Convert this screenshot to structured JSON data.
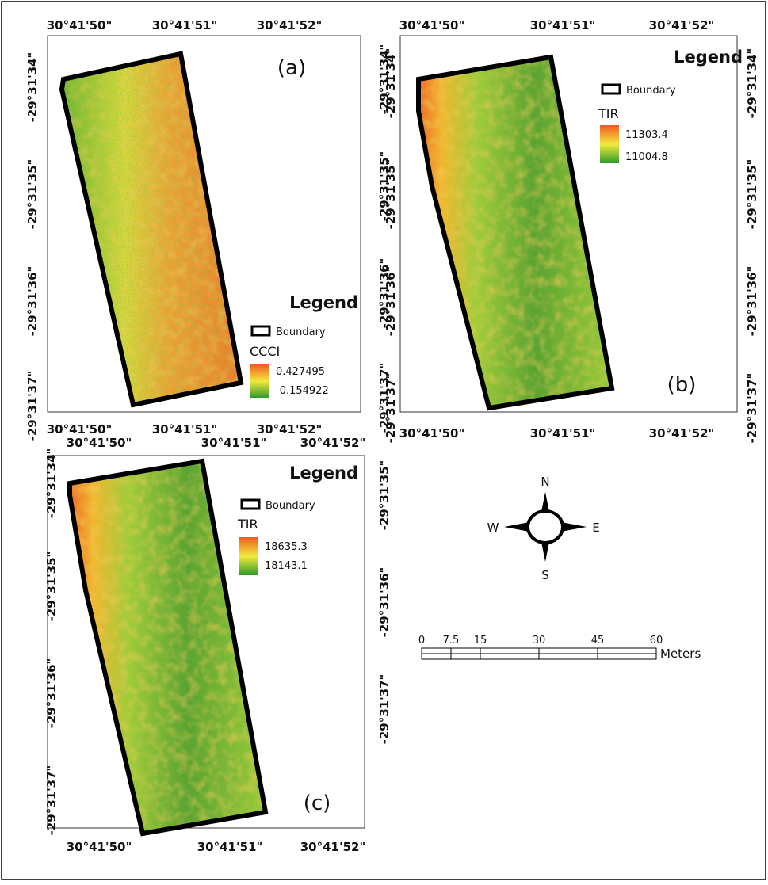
{
  "panels": [
    {
      "label": "(a)",
      "top_labels": [
        "30°41'50\"",
        "30°41'51\"",
        "30°41'52\""
      ],
      "bottom_labels": [
        "30°41'50\"",
        "30°41'51\"",
        "30°41'52\""
      ],
      "left_labels": [
        "-29°31'34\"",
        "-29°31'35\"",
        "-29°31'36\"",
        "-29°31'37\""
      ],
      "right_labels": [
        "-29°31'34\"",
        "-29°31'35\"",
        "-29°31'36\"",
        "-29°31'37\""
      ],
      "legend": {
        "title": "Legend",
        "boundary": "Boundary",
        "variable": "CCCI",
        "high": "0.427495",
        "low": "-0.154922"
      }
    },
    {
      "label": "(b)",
      "top_labels": [
        "30°41'50\"",
        "30°41'51\"",
        "30°41'52\""
      ],
      "bottom_labels": [
        "30°41'50\"",
        "30°41'51\"",
        "30°41'52\""
      ],
      "left_labels": [
        "-29°31'34\"",
        "-29°31'35\"",
        "-29°31'36\"",
        "-29°31'37\""
      ],
      "right_labels": [
        "-29°31'34\"",
        "-29°31'35\"",
        "-29°31'36\"",
        "-29°31'37\""
      ],
      "legend": {
        "title": "Legend",
        "boundary": "Boundary",
        "variable": "TIR",
        "high": "11303.4",
        "low": "11004.8"
      }
    },
    {
      "label": "(c)",
      "top_labels": [
        "30°41'50\"",
        "30°41'51\"",
        "30°41'52\""
      ],
      "bottom_labels": [
        "30°41'50\"",
        "30°41'51\"",
        "30°41'52\""
      ],
      "left_labels": [
        "-29°31'34\"",
        "-29°31'35\"",
        "-29°31'36\"",
        "-29°31'37\""
      ],
      "right_labels": [
        "-29°31'35\"",
        "-29°31'36\"",
        "-29°31'37\""
      ],
      "legend": {
        "title": "Legend",
        "boundary": "Boundary",
        "variable": "TIR",
        "high": "18635.3",
        "low": "18143.1"
      }
    }
  ],
  "compass": {
    "north": "N",
    "south": "S",
    "east": "E",
    "west": "W"
  },
  "scale_bar": {
    "ticks": [
      0,
      7.5,
      15,
      30,
      45,
      60
    ],
    "unit": "Meters"
  }
}
